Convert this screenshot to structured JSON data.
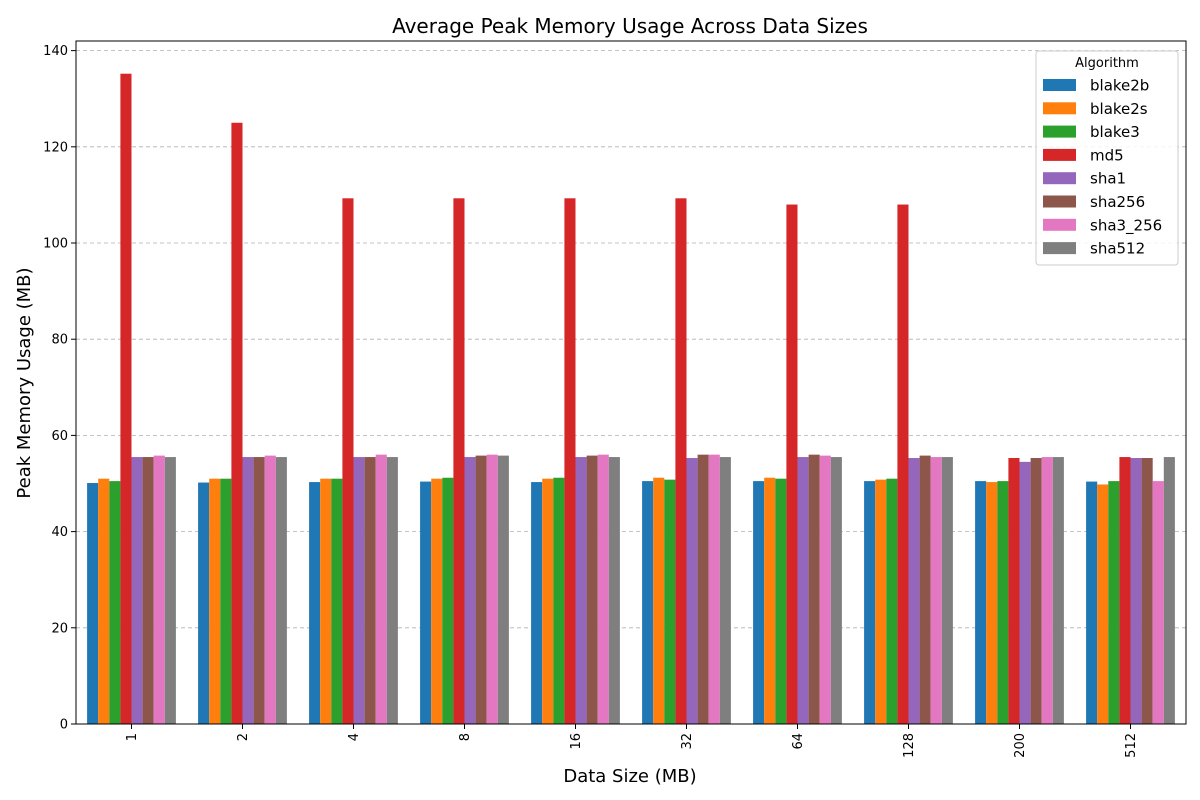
{
  "chart_data": {
    "type": "bar",
    "title": "Average Peak Memory Usage Across Data Sizes",
    "xlabel": "Data Size (MB)",
    "ylabel": "Peak Memory Usage (MB)",
    "ylim": [
      0,
      142
    ],
    "yticks": [
      0,
      20,
      40,
      60,
      80,
      100,
      120,
      140
    ],
    "grid": "y-dashed",
    "legend_title": "Algorithm",
    "legend_position": "top-right",
    "categories": [
      "1",
      "2",
      "4",
      "8",
      "16",
      "32",
      "64",
      "128",
      "200",
      "512"
    ],
    "series": [
      {
        "name": "blake2b",
        "color": "#1f77b4",
        "values": [
          50.1,
          50.2,
          50.3,
          50.4,
          50.3,
          50.5,
          50.5,
          50.5,
          50.5,
          50.4
        ]
      },
      {
        "name": "blake2s",
        "color": "#ff7f0e",
        "values": [
          51.0,
          51.0,
          51.0,
          51.0,
          51.0,
          51.2,
          51.2,
          50.8,
          50.3,
          49.8
        ]
      },
      {
        "name": "blake3",
        "color": "#2ca02c",
        "values": [
          50.5,
          51.0,
          51.0,
          51.2,
          51.2,
          50.8,
          51.0,
          51.0,
          50.5,
          50.5
        ]
      },
      {
        "name": "md5",
        "color": "#d62728",
        "values": [
          135.2,
          125.0,
          109.3,
          109.3,
          109.3,
          109.3,
          108.0,
          108.0,
          55.3,
          55.5
        ]
      },
      {
        "name": "sha1",
        "color": "#9467bd",
        "values": [
          55.5,
          55.5,
          55.5,
          55.5,
          55.5,
          55.3,
          55.5,
          55.3,
          54.5,
          55.3
        ]
      },
      {
        "name": "sha256",
        "color": "#8c564b",
        "values": [
          55.5,
          55.5,
          55.5,
          55.8,
          55.8,
          56.0,
          56.0,
          55.8,
          55.3,
          55.3
        ]
      },
      {
        "name": "sha3_256",
        "color": "#e377c2",
        "values": [
          55.8,
          55.8,
          56.0,
          56.0,
          56.0,
          56.0,
          55.8,
          55.5,
          55.5,
          50.5
        ]
      },
      {
        "name": "sha512",
        "color": "#7f7f7f",
        "values": [
          55.5,
          55.5,
          55.5,
          55.8,
          55.5,
          55.5,
          55.5,
          55.5,
          55.5,
          55.5
        ]
      }
    ]
  }
}
